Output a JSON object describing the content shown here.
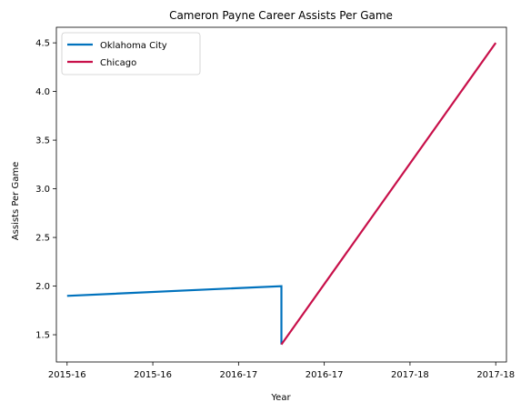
{
  "chart_data": {
    "type": "line",
    "title": "Cameron Payne Career Assists Per Game",
    "xlabel": "Year",
    "ylabel": "Assists Per Game",
    "x_tick_labels": [
      "2015-16",
      "2015-16",
      "2016-17",
      "2016-17",
      "2017-18",
      "2017-18"
    ],
    "xlim": [
      -0.05,
      2.05
    ],
    "ylim": [
      1.22,
      4.66
    ],
    "y_ticks": [
      1.5,
      2.0,
      2.5,
      3.0,
      3.5,
      4.0,
      4.5
    ],
    "y_tick_labels": [
      "1.5",
      "2.0",
      "2.5",
      "3.0",
      "3.5",
      "4.0",
      "4.5"
    ],
    "grid": false,
    "legend_position": "top-left",
    "series": [
      {
        "name": "Oklahoma City",
        "color": "#0072BD",
        "points": [
          {
            "x": 0.0,
            "y": 1.9
          },
          {
            "x": 1.0,
            "y": 2.0
          },
          {
            "x": 1.0,
            "y": 1.4
          }
        ]
      },
      {
        "name": "Chicago",
        "color": "#C8104A",
        "points": [
          {
            "x": 1.0,
            "y": 1.4
          },
          {
            "x": 2.0,
            "y": 4.5
          }
        ]
      }
    ]
  }
}
